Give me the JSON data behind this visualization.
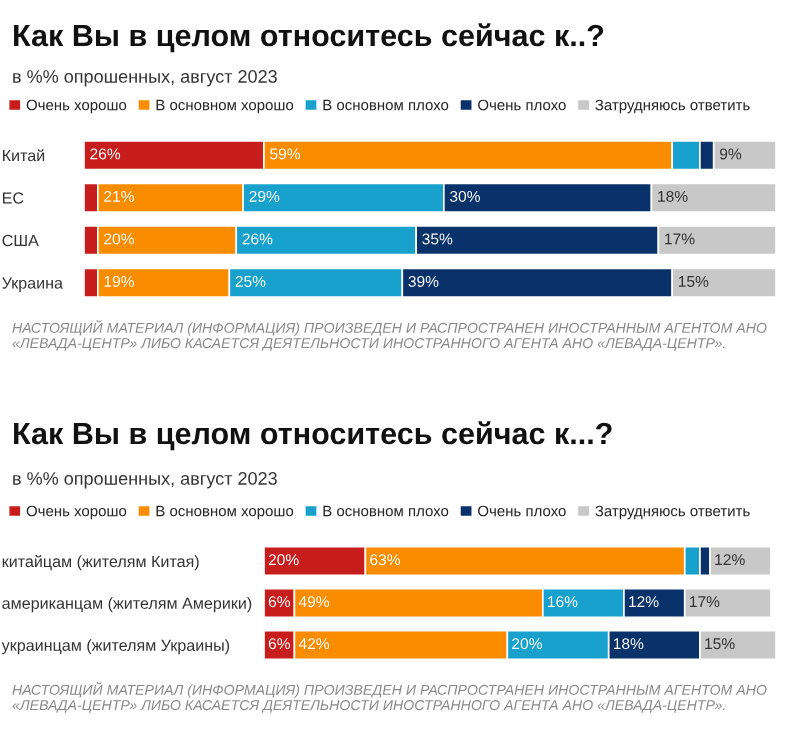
{
  "chart_data": [
    {
      "type": "bar",
      "orientation": "horizontal",
      "stacked": true,
      "title": "Как Вы в целом относитесь сейчас к..?",
      "subtitle": "в %% опрошенных, август 2023",
      "legend": "top",
      "xlim": [
        0,
        100
      ],
      "tick_labels": "y",
      "categories": [
        "Китай",
        "ЕС",
        "США",
        "Украина"
      ],
      "series": [
        {
          "name": "Очень хорошо",
          "color": "#c71e1d",
          "values": [
            26,
            2,
            2,
            2
          ],
          "value_labels": [
            "26%",
            null,
            null,
            null
          ]
        },
        {
          "name": "В основном хорошо",
          "color": "#fa8c00",
          "values": [
            59,
            21,
            20,
            19
          ],
          "value_labels": [
            "59%",
            "21%",
            "20%",
            "19%"
          ]
        },
        {
          "name": "В основном плохо",
          "color": "#18a1cd",
          "values": [
            4,
            29,
            26,
            25
          ],
          "value_labels": [
            null,
            "29%",
            "26%",
            "25%"
          ]
        },
        {
          "name": "Очень плохо",
          "color": "#09326a",
          "values": [
            2,
            30,
            35,
            39
          ],
          "value_labels": [
            null,
            "30%",
            "35%",
            "39%"
          ]
        },
        {
          "name": "Затрудняюсь ответить",
          "color": "#c8c8c8",
          "values": [
            9,
            18,
            17,
            15
          ],
          "value_labels": [
            "9%",
            "18%",
            "17%",
            "15%"
          ]
        }
      ],
      "annotations": [
        "НАСТОЯЩИЙ МАТЕРИАЛ (ИНФОРМАЦИЯ) ПРОИЗВЕДЕН И РАСПРОСТРАНЕН ИНОСТРАННЫМ АГЕНТОМ АНО «ЛЕВАДА-ЦЕНТР» ЛИБО КАСАЕТСЯ ДЕЯТЕЛЬНОСТИ ИНОСТРАННОГО АГЕНТА АНО «ЛЕВАДА-ЦЕНТР»."
      ]
    },
    {
      "type": "bar",
      "orientation": "horizontal",
      "stacked": true,
      "title": "Как Вы в целом относитесь сейчас к...?",
      "subtitle": "в %% опрошенных, август 2023",
      "legend": "top",
      "xlim": [
        0,
        101
      ],
      "tick_labels": "y",
      "categories": [
        "китайцам (жителям Китая)",
        "американцам (жителям Америки)",
        "украинцам (жителям Украины)"
      ],
      "series": [
        {
          "name": "Очень хорошо",
          "color": "#c71e1d",
          "values": [
            20,
            6,
            6
          ],
          "value_labels": [
            "20%",
            "6%",
            "6%"
          ]
        },
        {
          "name": "В основном хорошо",
          "color": "#fa8c00",
          "values": [
            63,
            49,
            42
          ],
          "value_labels": [
            "63%",
            "49%",
            "42%"
          ]
        },
        {
          "name": "В основном плохо",
          "color": "#18a1cd",
          "values": [
            3,
            16,
            20
          ],
          "value_labels": [
            null,
            "16%",
            "20%"
          ]
        },
        {
          "name": "Очень плохо",
          "color": "#09326a",
          "values": [
            2,
            12,
            18
          ],
          "value_labels": [
            null,
            "12%",
            "18%"
          ]
        },
        {
          "name": "Затрудняюсь ответить",
          "color": "#c8c8c8",
          "values": [
            12,
            17,
            15
          ],
          "value_labels": [
            "12%",
            "17%",
            "15%"
          ]
        }
      ],
      "annotations": [
        "НАСТОЯЩИЙ МАТЕРИАЛ (ИНФОРМАЦИЯ) ПРОИЗВЕДЕН И РАСПРОСТРАНЕН ИНОСТРАННЫМ АГЕНТОМ АНО «ЛЕВАДА-ЦЕНТР» ЛИБО КАСАЕТСЯ ДЕЯТЕЛЬНОСТИ ИНОСТРАННОГО АГЕНТА АНО «ЛЕВАДА-ЦЕНТР»."
      ]
    }
  ]
}
